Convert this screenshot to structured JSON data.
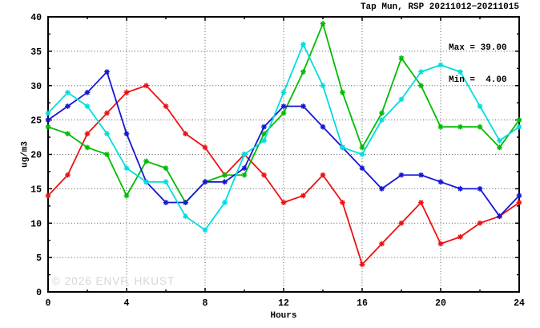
{
  "title": "Tap Mun, RSP 20211012−20211015",
  "annotation": {
    "max_label": "Max = 39.00",
    "min_label": "Min =  4.00",
    "max_value": 39.0,
    "min_value": 4.0
  },
  "watermark": "© 2026 ENVF, HKUST",
  "axes": {
    "xlabel": "Hours",
    "ylabel": "ug/m3"
  },
  "chart_data": {
    "type": "line",
    "title": "Tap Mun, RSP 20211012−20211015",
    "xlabel": "Hours",
    "ylabel": "ug/m3",
    "xlim": [
      0,
      24
    ],
    "ylim": [
      0,
      40
    ],
    "xticks_major": [
      0,
      4,
      8,
      12,
      16,
      20,
      24
    ],
    "xticks_minor": [
      2,
      6,
      10,
      14,
      18,
      22
    ],
    "yticks_major": [
      0,
      5,
      10,
      15,
      20,
      25,
      30,
      35,
      40
    ],
    "yticks_minor": [
      2.5,
      7.5,
      12.5,
      17.5,
      22.5,
      27.5,
      32.5,
      37.5
    ],
    "grid_x": [
      4,
      8,
      12,
      16,
      20
    ],
    "grid_y": [
      5,
      10,
      15,
      20,
      25,
      30,
      35
    ],
    "grid": true,
    "legend": "none",
    "marker": "star",
    "x": [
      0,
      1,
      2,
      3,
      4,
      5,
      6,
      7,
      8,
      9,
      10,
      11,
      12,
      13,
      14,
      15,
      16,
      17,
      18,
      19,
      20,
      21,
      22,
      23,
      24
    ],
    "series": [
      {
        "name": "series-red",
        "color": "#ee1111",
        "values": [
          14,
          17,
          23,
          26,
          29,
          30,
          27,
          23,
          21,
          17,
          20,
          17,
          13,
          14,
          17,
          13,
          4,
          7,
          10,
          13,
          7,
          8,
          10,
          11,
          13
        ]
      },
      {
        "name": "series-green",
        "color": "#00bb00",
        "values": [
          24,
          23,
          21,
          20,
          14,
          19,
          18,
          13,
          16,
          17,
          17,
          23,
          26,
          32,
          39,
          29,
          21,
          26,
          34,
          30,
          24,
          24,
          24,
          21,
          25
        ]
      },
      {
        "name": "series-blue",
        "color": "#1515d6",
        "values": [
          25,
          27,
          29,
          32,
          23,
          16,
          13,
          13,
          16,
          16,
          18,
          24,
          27,
          27,
          24,
          21,
          18,
          15,
          17,
          17,
          16,
          15,
          15,
          11,
          14
        ]
      },
      {
        "name": "series-cyan",
        "color": "#00dddd",
        "values": [
          26,
          29,
          27,
          23,
          18,
          16,
          16,
          11,
          9,
          13,
          20,
          22,
          29,
          36,
          30,
          21,
          20,
          25,
          28,
          32,
          33,
          32,
          27,
          22,
          24
        ]
      }
    ]
  }
}
